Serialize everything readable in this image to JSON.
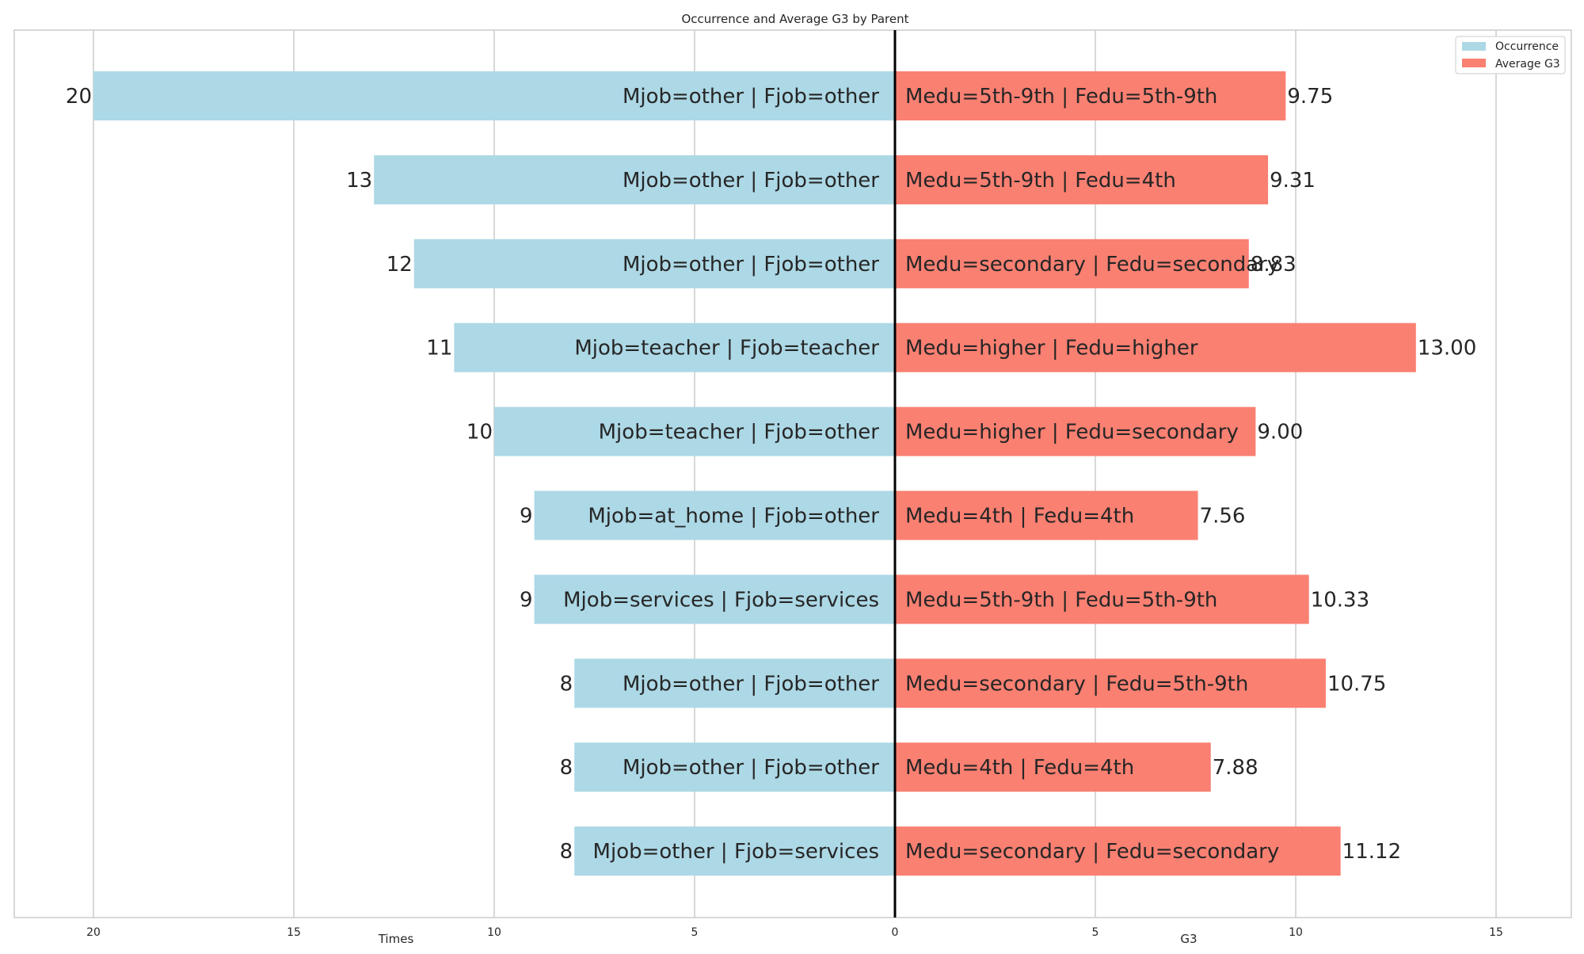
{
  "chart_data": {
    "type": "bar",
    "title": "Occurrence and Average G3 by Parent",
    "xlabel_left": "Times",
    "xlabel_right": "G3",
    "x_ticks": [
      "20",
      "15",
      "10",
      "5",
      "0",
      "5",
      "10",
      "15"
    ],
    "xlim_left": [
      0,
      22
    ],
    "xlim_right": [
      0,
      17
    ],
    "grid": true,
    "legend": {
      "position": "top-right",
      "entries": [
        {
          "name": "Occurrence",
          "color": "#add8e6"
        },
        {
          "name": "Average G3",
          "color": "#fa8072"
        }
      ]
    },
    "occurrence": {
      "name": "Occurrence",
      "color": "#add8e6",
      "categories": [
        "Mjob=other | Fjob=other",
        "Mjob=other | Fjob=other",
        "Mjob=other | Fjob=other",
        "Mjob=teacher | Fjob=teacher",
        "Mjob=teacher | Fjob=other",
        "Mjob=at_home | Fjob=other",
        "Mjob=services | Fjob=services",
        "Mjob=other | Fjob=other",
        "Mjob=other | Fjob=other",
        "Mjob=other | Fjob=services"
      ],
      "values": [
        20,
        13,
        12,
        11,
        10,
        9,
        9,
        8,
        8,
        8
      ],
      "value_labels": [
        "20",
        "13",
        "12",
        "11",
        "10",
        "9",
        "9",
        "8",
        "8",
        "8"
      ]
    },
    "average_g3": {
      "name": "Average G3",
      "color": "#fa8072",
      "categories": [
        "Medu=5th-9th | Fedu=5th-9th",
        "Medu=5th-9th | Fedu=4th",
        "Medu=secondary | Fedu=secondary",
        "Medu=higher | Fedu=higher",
        "Medu=higher | Fedu=secondary",
        "Medu=4th | Fedu=4th",
        "Medu=5th-9th | Fedu=5th-9th",
        "Medu=secondary | Fedu=5th-9th",
        "Medu=4th | Fedu=4th",
        "Medu=secondary | Fedu=secondary"
      ],
      "values": [
        9.75,
        9.31,
        8.83,
        13.0,
        9.0,
        7.56,
        10.33,
        10.75,
        7.88,
        11.12
      ],
      "value_labels": [
        "9.75",
        "9.31",
        "8.83",
        "13.00",
        "9.00",
        "7.56",
        "10.33",
        "10.75",
        "7.88",
        "11.12"
      ]
    }
  }
}
